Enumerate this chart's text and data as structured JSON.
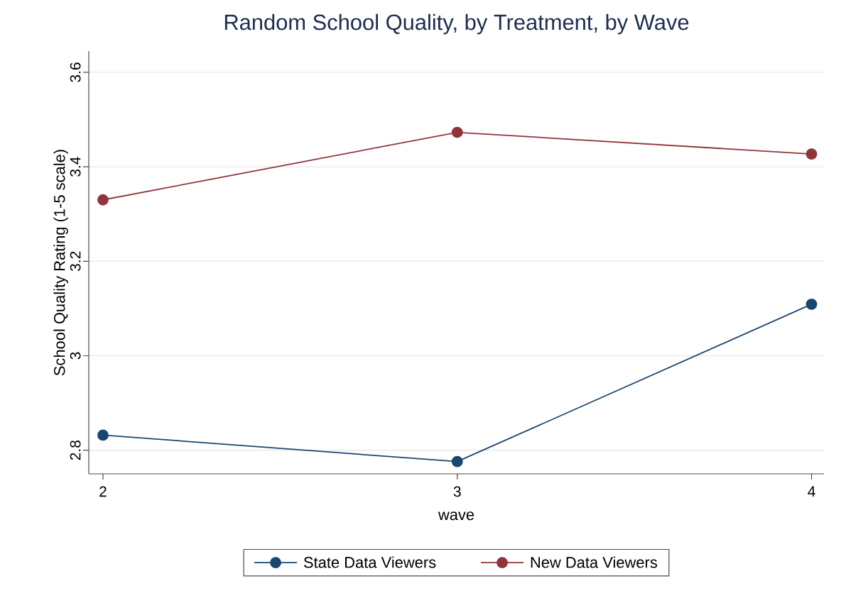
{
  "chart_data": {
    "type": "line",
    "title": "Random School Quality, by Treatment, by Wave",
    "xlabel": "wave",
    "ylabel": "School Quality Rating (1-5 scale)",
    "x": [
      2,
      3,
      4
    ],
    "series": [
      {
        "name": "State Data Viewers",
        "color": "#1a476f",
        "values": [
          2.832,
          2.776,
          3.109
        ]
      },
      {
        "name": "New Data Viewers",
        "color": "#90353b",
        "values": [
          3.33,
          3.473,
          3.427
        ]
      }
    ],
    "xlim": [
      1.96,
      4.035
    ],
    "ylim": [
      2.75,
      3.645
    ],
    "xticks": [
      2,
      3,
      4
    ],
    "yticks": [
      2.8,
      3,
      3.2,
      3.4,
      3.6
    ],
    "grid": "y",
    "legend": "bottom",
    "marker": "circle",
    "line_style": "solid"
  }
}
